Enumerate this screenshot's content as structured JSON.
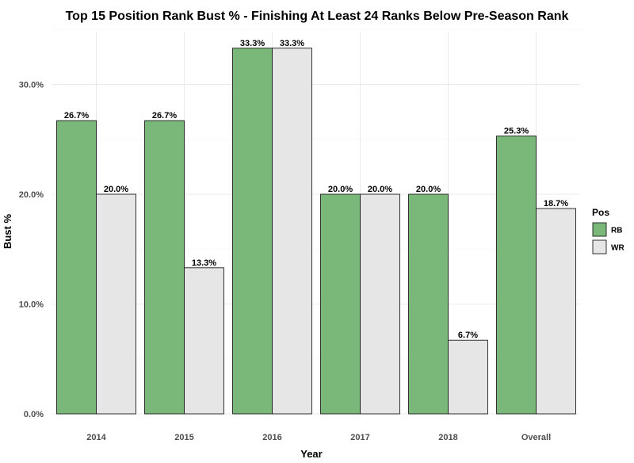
{
  "chart_data": {
    "type": "bar",
    "title": "Top 15 Position Rank Bust % - Finishing At Least 24 Ranks Below Pre-Season Rank",
    "xlabel": "Year",
    "ylabel": "Bust %",
    "categories": [
      "2014",
      "2015",
      "2016",
      "2017",
      "2018",
      "Overall"
    ],
    "series": [
      {
        "name": "RB",
        "color": "#7ab87a",
        "values": [
          26.7,
          26.7,
          33.3,
          20.0,
          20.0,
          25.3
        ]
      },
      {
        "name": "WR",
        "color": "#e6e6e6",
        "values": [
          20.0,
          13.3,
          33.3,
          20.0,
          6.7,
          18.7
        ]
      }
    ],
    "ylim": [
      0,
      34.8
    ],
    "yticks": [
      0,
      10,
      20,
      30
    ],
    "ytick_labels": [
      "0.0%",
      "10.0%",
      "20.0%",
      "30.0%"
    ],
    "value_suffix": "%",
    "grid": true,
    "legend": {
      "title": "Pos",
      "position": "right"
    }
  }
}
